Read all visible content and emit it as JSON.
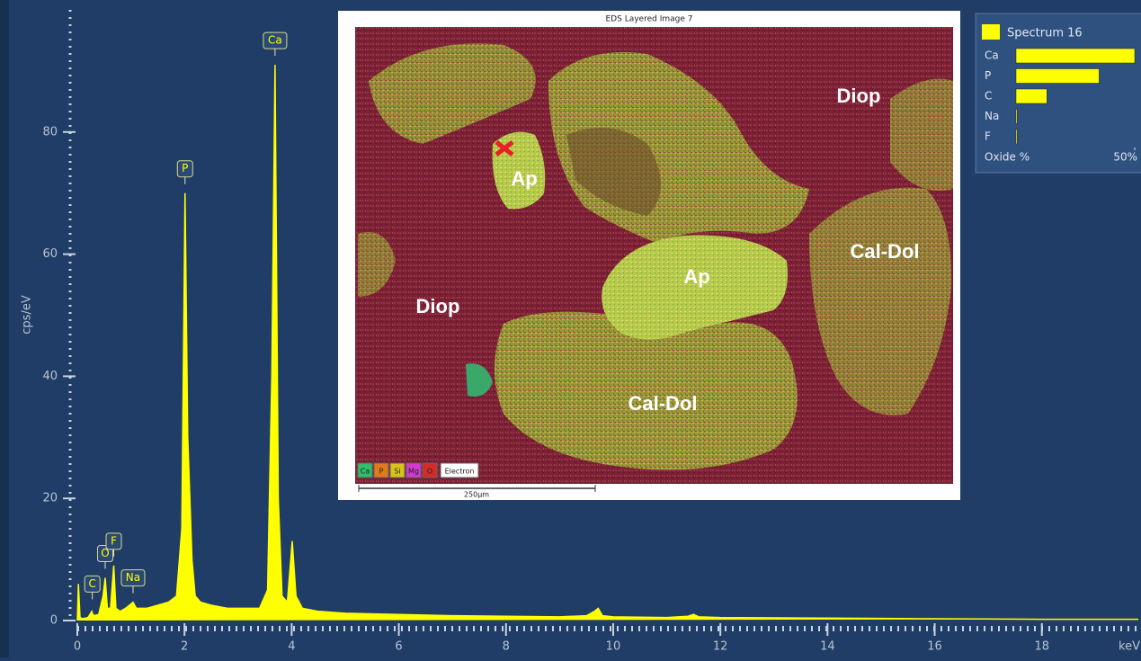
{
  "chart_data": [
    {
      "type": "area",
      "x_label": "keV",
      "y_label": "cps/eV",
      "color": "#ffff00",
      "x": [
        0,
        0.02,
        0.05,
        0.1,
        0.2,
        0.27,
        0.3,
        0.4,
        0.48,
        0.52,
        0.56,
        0.62,
        0.68,
        0.72,
        0.8,
        0.9,
        1.04,
        1.1,
        1.3,
        1.5,
        1.7,
        1.85,
        1.95,
        2.01,
        2.06,
        2.1,
        2.14,
        2.2,
        2.3,
        2.5,
        2.8,
        3.1,
        3.4,
        3.55,
        3.63,
        3.69,
        3.75,
        3.82,
        3.92,
        4.01,
        4.08,
        4.2,
        4.5,
        5,
        6,
        7,
        8,
        9,
        9.5,
        9.65,
        9.72,
        9.8,
        10,
        11,
        11.4,
        11.5,
        11.6,
        12,
        14,
        16,
        18,
        19.8
      ],
      "values": [
        0,
        6,
        0.5,
        0.3,
        0.5,
        1.5,
        0.8,
        1,
        4,
        7,
        2,
        2,
        9,
        2,
        1.5,
        2,
        3,
        2,
        2,
        2.5,
        3,
        4,
        15,
        70,
        30,
        20,
        10,
        4,
        3,
        2.5,
        2,
        2,
        2,
        5,
        40,
        91,
        20,
        4,
        3,
        13,
        4,
        2,
        1.5,
        1.2,
        1,
        0.8,
        0.7,
        0.6,
        0.8,
        1.5,
        2,
        0.8,
        0.6,
        0.5,
        0.7,
        1,
        0.6,
        0.5,
        0.4,
        0.3,
        0.2,
        0.2
      ],
      "xlim": [
        0,
        19.8
      ],
      "ylim": [
        0,
        100
      ],
      "xticks": [
        0,
        2,
        4,
        6,
        8,
        10,
        12,
        14,
        16,
        18
      ],
      "yticks": [
        0,
        20,
        40,
        60,
        80
      ],
      "annotations": [
        {
          "text": "C",
          "x": 0.28,
          "y": 2
        },
        {
          "text": "O",
          "x": 0.52,
          "y": 7
        },
        {
          "text": "F",
          "x": 0.68,
          "y": 9
        },
        {
          "text": "Na",
          "x": 1.04,
          "y": 3
        },
        {
          "text": "P",
          "x": 2.01,
          "y": 70
        },
        {
          "text": "Ca",
          "x": 3.69,
          "y": 91
        }
      ]
    },
    {
      "type": "barh",
      "categories": [
        "Ca",
        "P",
        "C",
        "Na",
        "F"
      ],
      "series": [
        {
          "name": "Spectrum 16",
          "color": "#ffff00",
          "values": [
            50,
            35,
            13,
            0.5,
            0.5
          ]
        }
      ],
      "x_label": "Oxide %",
      "xlim": [
        0,
        50
      ],
      "xticks": [
        {
          "value": 50,
          "label": "50%"
        }
      ]
    }
  ],
  "inset": {
    "title": "EDS Layered Image 7",
    "labels": [
      "Diop",
      "Ap",
      "Diop",
      "Ap",
      "Cal-Dol",
      "Cal-Dol"
    ],
    "channels": [
      {
        "name": "Ca",
        "color": "#2fbf6a"
      },
      {
        "name": "P",
        "color": "#e07a1c"
      },
      {
        "name": "Si",
        "color": "#d9c21a"
      },
      {
        "name": "Mg",
        "color": "#d23ad2"
      },
      {
        "name": "O",
        "color": "#d62a2a"
      }
    ],
    "electron": "Electron",
    "scale": "250µm"
  }
}
